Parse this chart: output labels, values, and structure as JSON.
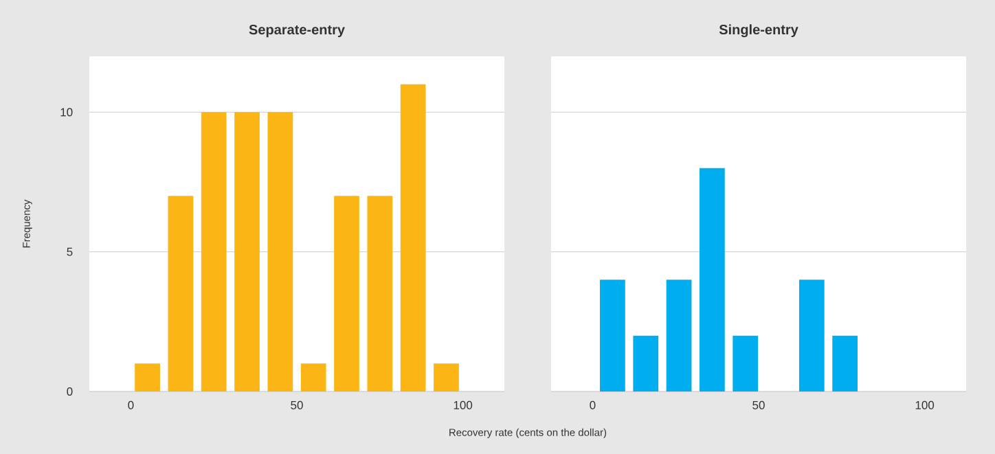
{
  "chart_data": [
    {
      "type": "histogram",
      "title": "Separate-entry",
      "xlabel": "Recovery rate (cents on the dollar)",
      "ylabel": "Frequency",
      "color": "#fbb615",
      "bins": [
        0,
        10,
        20,
        30,
        40,
        50,
        60,
        70,
        80,
        90,
        100
      ],
      "values": [
        1,
        7,
        10,
        10,
        10,
        1,
        7,
        7,
        11,
        1
      ],
      "xlim": [
        -12.5,
        112.5
      ],
      "xticks": [
        0,
        50,
        100
      ],
      "ylim": [
        0,
        12
      ],
      "yticks": [
        0,
        5,
        10
      ],
      "grid": "y"
    },
    {
      "type": "histogram",
      "title": "Single-entry",
      "color": "#00aeef",
      "bins": [
        1,
        11,
        21,
        31,
        41,
        51,
        61,
        71,
        81
      ],
      "values": [
        4,
        2,
        4,
        8,
        2,
        0,
        4,
        2
      ],
      "xlim": [
        -12.5,
        112.5
      ],
      "xticks": [
        0,
        50,
        100
      ],
      "ylim": [
        0,
        12
      ],
      "yticks": [
        0,
        5,
        10
      ],
      "grid": "y",
      "tick_labels": "x"
    }
  ]
}
